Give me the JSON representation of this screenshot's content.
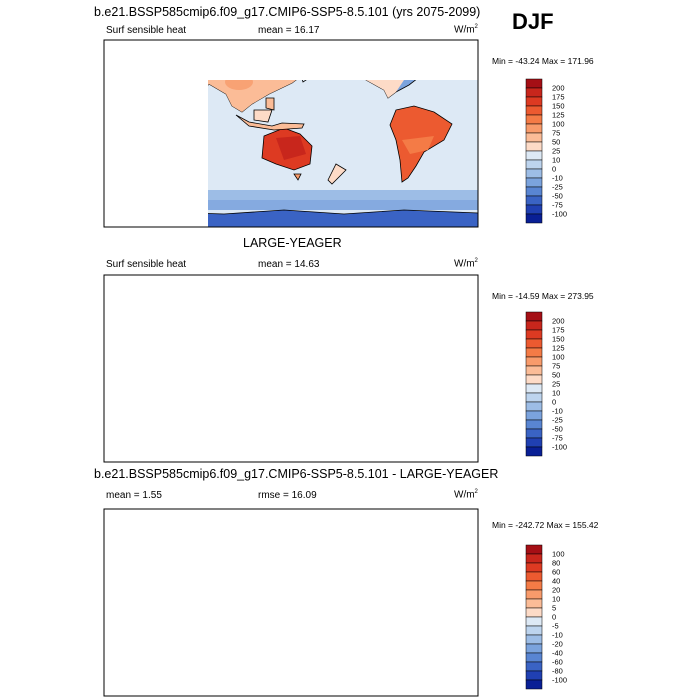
{
  "chart_data": [
    {
      "type": "heatmap",
      "title": "b.e21.BSSP585cmip6.f09_g17.CMIP6-SSP5-8.5.101 (yrs 2075-2099)",
      "season": "DJF",
      "variable": "Surf sensible heat",
      "mean_label": "mean =",
      "mean_value": "16.17",
      "units": "W/m",
      "units_sup": "2",
      "min_label": "Min =",
      "min_value": "-43.24",
      "max_label": "Max =",
      "max_value": "171.96",
      "colorbar": {
        "levels": [
          "200",
          "175",
          "150",
          "125",
          "100",
          "75",
          "50",
          "25",
          "10",
          "0",
          "-10",
          "-25",
          "-50",
          "-75",
          "-100"
        ],
        "colors": [
          "#a50f15",
          "#c8261c",
          "#dd3a22",
          "#ec5a30",
          "#f47b46",
          "#f89b6b",
          "#fbbc97",
          "#fddbc7",
          "#dde9f5",
          "#bdd4ee",
          "#9dbde6",
          "#7ba3dd",
          "#5985d2",
          "#3a63c4",
          "#2040b2",
          "#091f95"
        ]
      }
    },
    {
      "type": "heatmap",
      "title": "LARGE-YEAGER",
      "variable": "Surf sensible heat",
      "mean_label": "mean =",
      "mean_value": "14.63",
      "units": "W/m",
      "units_sup": "2",
      "min_label": "Min =",
      "min_value": "-14.59",
      "max_label": "Max =",
      "max_value": "273.95",
      "colorbar": {
        "levels": [
          "200",
          "175",
          "150",
          "125",
          "100",
          "75",
          "50",
          "25",
          "10",
          "0",
          "-10",
          "-25",
          "-50",
          "-75",
          "-100"
        ],
        "colors": [
          "#a50f15",
          "#c8261c",
          "#dd3a22",
          "#ec5a30",
          "#f47b46",
          "#f89b6b",
          "#fbbc97",
          "#fddbc7",
          "#dde9f5",
          "#bdd4ee",
          "#9dbde6",
          "#7ba3dd",
          "#5985d2",
          "#3a63c4",
          "#2040b2",
          "#091f95"
        ]
      }
    },
    {
      "type": "heatmap",
      "title": "b.e21.BSSP585cmip6.f09_g17.CMIP6-SSP5-8.5.101 - LARGE-YEAGER",
      "mean_label": "mean =",
      "mean_value": "1.55",
      "rmse_label": "rmse =",
      "rmse_value": "16.09",
      "units": "W/m",
      "units_sup": "2",
      "min_label": "Min =",
      "min_value": "-242.72",
      "max_label": "Max =",
      "max_value": "155.42",
      "colorbar": {
        "levels": [
          "100",
          "80",
          "60",
          "40",
          "20",
          "10",
          "5",
          "0",
          "-5",
          "-10",
          "-20",
          "-40",
          "-60",
          "-80",
          "-100"
        ],
        "colors": [
          "#a50f15",
          "#c8261c",
          "#dd3a22",
          "#ec5a30",
          "#f47b46",
          "#f89b6b",
          "#fbbc97",
          "#fddbc7",
          "#dde9f5",
          "#bdd4ee",
          "#9dbde6",
          "#7ba3dd",
          "#5985d2",
          "#3a63c4",
          "#2040b2",
          "#091f95"
        ]
      }
    }
  ]
}
